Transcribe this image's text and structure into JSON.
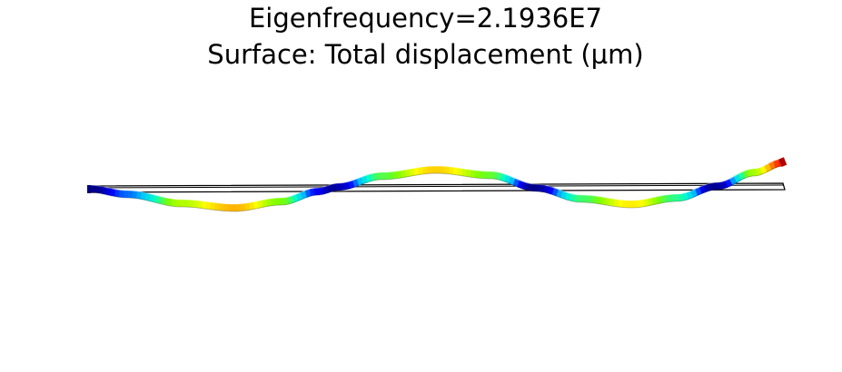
{
  "title": {
    "line1": "Eigenfrequency=2.1936E7",
    "line2": "Surface: Total displacement (µm)"
  },
  "colormap": [
    "#00007f",
    "#0000ff",
    "#00bfff",
    "#00ffd0",
    "#7fff00",
    "#ffff00",
    "#ffa500",
    "#ff3000",
    "#b00000"
  ]
}
